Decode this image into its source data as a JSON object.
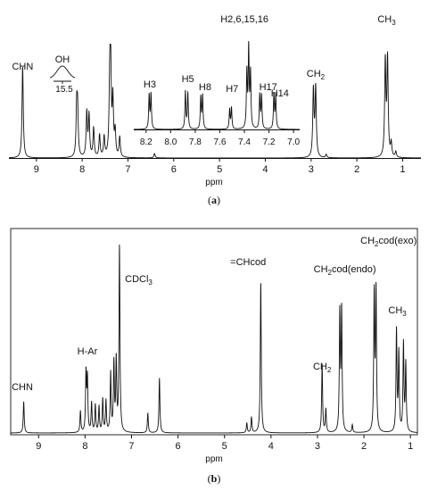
{
  "chart_data": [
    {
      "type": "line",
      "panel": "a",
      "caption": "(a)",
      "xlabel": "ppm",
      "x_ticks": [
        9,
        8,
        7,
        6,
        5,
        4,
        3,
        2,
        1
      ],
      "xlim": [
        9.6,
        0.6
      ],
      "labels": [
        {
          "text": "CHN",
          "x": 9.3
        },
        {
          "text": "CH₂",
          "x": 2.9
        },
        {
          "text": "CH₃",
          "x": 1.35
        }
      ],
      "peaks": [
        {
          "x": 9.3,
          "h": 0.82
        },
        {
          "x": 8.12,
          "h": 0.42
        },
        {
          "x": 8.1,
          "h": 0.4
        },
        {
          "x": 7.9,
          "h": 0.4
        },
        {
          "x": 7.85,
          "h": 0.37
        },
        {
          "x": 7.75,
          "h": 0.26
        },
        {
          "x": 7.62,
          "h": 0.2
        },
        {
          "x": 7.52,
          "h": 0.18
        },
        {
          "x": 7.4,
          "h": 0.52
        },
        {
          "x": 7.38,
          "h": 0.88
        },
        {
          "x": 7.33,
          "h": 0.5
        },
        {
          "x": 7.28,
          "h": 0.22
        },
        {
          "x": 7.18,
          "h": 0.18
        },
        {
          "x": 6.42,
          "h": 0.04
        },
        {
          "x": 2.95,
          "h": 0.6
        },
        {
          "x": 2.9,
          "h": 0.62
        },
        {
          "x": 2.67,
          "h": 0.03
        },
        {
          "x": 1.38,
          "h": 0.85
        },
        {
          "x": 1.33,
          "h": 0.87
        },
        {
          "x": 1.25,
          "h": 0.12
        },
        {
          "x": 1.15,
          "h": 0.05
        }
      ],
      "inset": {
        "x_ticks": [
          8.2,
          8.0,
          7.8,
          7.6,
          7.4,
          7.2,
          7.0
        ],
        "xlim": [
          8.3,
          6.95
        ],
        "labels": [
          {
            "text": "H3",
            "x": 8.17
          },
          {
            "text": "H5",
            "x": 7.86
          },
          {
            "text": "H8",
            "x": 7.72
          },
          {
            "text": "H7",
            "x": 7.5
          },
          {
            "text": "H2,6,15,16",
            "x": 7.37
          },
          {
            "text": "H17",
            "x": 7.25
          },
          {
            "text": "H14",
            "x": 7.14
          }
        ],
        "peaks": [
          {
            "x": 8.175,
            "h": 0.35
          },
          {
            "x": 8.16,
            "h": 0.36
          },
          {
            "x": 7.88,
            "h": 0.39
          },
          {
            "x": 7.86,
            "h": 0.37
          },
          {
            "x": 7.755,
            "h": 0.33
          },
          {
            "x": 7.74,
            "h": 0.34
          },
          {
            "x": 7.52,
            "h": 0.2
          },
          {
            "x": 7.505,
            "h": 0.22
          },
          {
            "x": 7.38,
            "h": 0.58
          },
          {
            "x": 7.365,
            "h": 0.82
          },
          {
            "x": 7.35,
            "h": 0.57
          },
          {
            "x": 7.275,
            "h": 0.35
          },
          {
            "x": 7.26,
            "h": 0.34
          },
          {
            "x": 7.16,
            "h": 0.36
          },
          {
            "x": 7.145,
            "h": 0.34
          }
        ]
      },
      "oh_inset": {
        "label": "OH",
        "tick": "15.5"
      }
    },
    {
      "type": "line",
      "panel": "b",
      "caption": "(b)",
      "xlabel": "ppm",
      "x_ticks": [
        9,
        8,
        7,
        6,
        5,
        4,
        3,
        2,
        1
      ],
      "xlim": [
        9.6,
        0.85
      ],
      "labels": [
        {
          "text": "CHN",
          "x": 9.35
        },
        {
          "text": "H-Ar",
          "x": 7.95
        },
        {
          "text": "CDCl₃",
          "x": 7.0
        },
        {
          "text": "=CHcod",
          "x": 4.3
        },
        {
          "text": "CH₂",
          "x": 2.9
        },
        {
          "text": "CH₂cod(endo)",
          "x": 2.45
        },
        {
          "text": "CH₂cod(exo)",
          "x": 1.7
        },
        {
          "text": "CH₃",
          "x": 1.28
        }
      ],
      "peaks": [
        {
          "x": 9.32,
          "h": 0.16
        },
        {
          "x": 8.1,
          "h": 0.11
        },
        {
          "x": 7.98,
          "h": 0.3
        },
        {
          "x": 7.95,
          "h": 0.27
        },
        {
          "x": 7.86,
          "h": 0.15
        },
        {
          "x": 7.78,
          "h": 0.14
        },
        {
          "x": 7.7,
          "h": 0.13
        },
        {
          "x": 7.62,
          "h": 0.17
        },
        {
          "x": 7.55,
          "h": 0.16
        },
        {
          "x": 7.45,
          "h": 0.3
        },
        {
          "x": 7.38,
          "h": 0.35
        },
        {
          "x": 7.33,
          "h": 0.36
        },
        {
          "x": 7.26,
          "h": 0.95
        },
        {
          "x": 6.65,
          "h": 0.1
        },
        {
          "x": 6.4,
          "h": 0.28
        },
        {
          "x": 4.52,
          "h": 0.05
        },
        {
          "x": 4.42,
          "h": 0.08
        },
        {
          "x": 4.22,
          "h": 0.77
        },
        {
          "x": 2.9,
          "h": 0.35
        },
        {
          "x": 2.82,
          "h": 0.12
        },
        {
          "x": 2.52,
          "h": 0.6
        },
        {
          "x": 2.48,
          "h": 0.62
        },
        {
          "x": 2.25,
          "h": 0.04
        },
        {
          "x": 1.78,
          "h": 0.7
        },
        {
          "x": 1.74,
          "h": 0.72
        },
        {
          "x": 1.3,
          "h": 0.52
        },
        {
          "x": 1.25,
          "h": 0.4
        },
        {
          "x": 1.15,
          "h": 0.45
        },
        {
          "x": 1.1,
          "h": 0.35
        }
      ]
    }
  ]
}
